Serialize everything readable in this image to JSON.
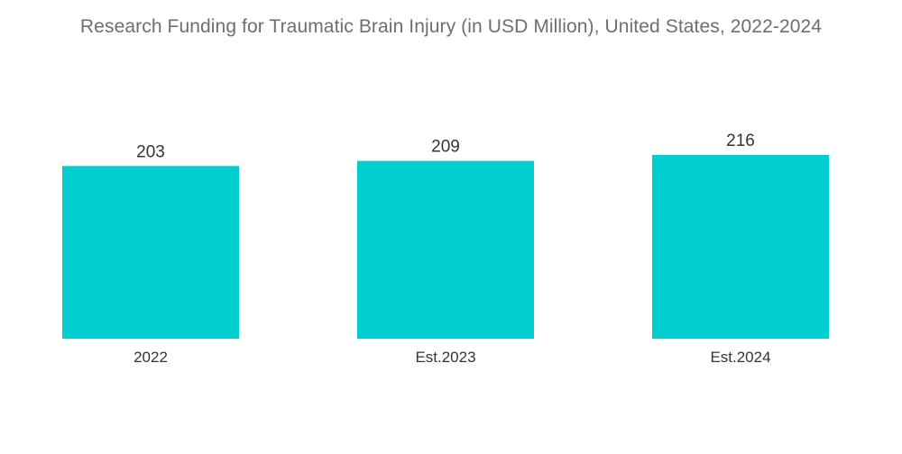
{
  "chart_data": {
    "type": "bar",
    "title": "Research Funding for Traumatic Brain Injury (in USD Million), United States, 2022-2024",
    "categories": [
      "2022",
      "Est.2023",
      "Est.2024"
    ],
    "values": [
      203,
      209,
      216
    ],
    "data_labels": [
      "203",
      "209",
      "216"
    ],
    "xlabel": "",
    "ylabel": "",
    "ylim": [
      0,
      216
    ],
    "grid": false,
    "legend": "none",
    "bar_color": "#00CED1"
  }
}
